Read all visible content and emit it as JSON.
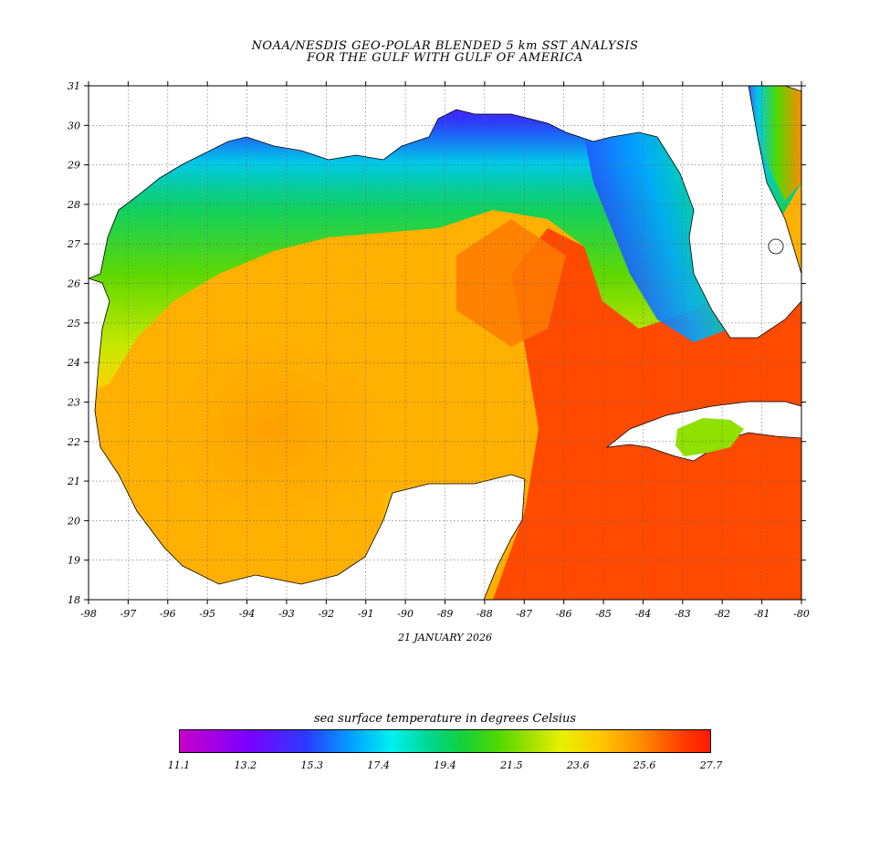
{
  "title": {
    "line1": "NOAA/NESDIS GEO-POLAR BLENDED 5 km SST ANALYSIS",
    "line2": "FOR THE GULF WITH GULF OF AMERICA"
  },
  "date": "21 JANUARY 2026",
  "axes": {
    "longitude_ticks": [
      "-98",
      "-97",
      "-96",
      "-95",
      "-94",
      "-93",
      "-92",
      "-91",
      "-90",
      "-89",
      "-88",
      "-87",
      "-86",
      "-85",
      "-84",
      "-83",
      "-82",
      "-81",
      "-80"
    ],
    "latitude_ticks": [
      "31",
      "30",
      "29",
      "28",
      "27",
      "26",
      "25",
      "24",
      "23",
      "22",
      "21",
      "20",
      "19",
      "18"
    ]
  },
  "colorbar": {
    "title": "sea surface temperature in degrees Celsius",
    "ticks": [
      "11.1",
      "13.2",
      "15.3",
      "17.4",
      "19.4",
      "21.5",
      "23.6",
      "25.6",
      "27.7"
    ]
  },
  "colors": {
    "land": "#ffffff",
    "coldest": "#c800c8",
    "cool": "#2a3cff",
    "mid": "#10d040",
    "warm": "#ffc800",
    "hottest": "#ff1a00"
  }
}
